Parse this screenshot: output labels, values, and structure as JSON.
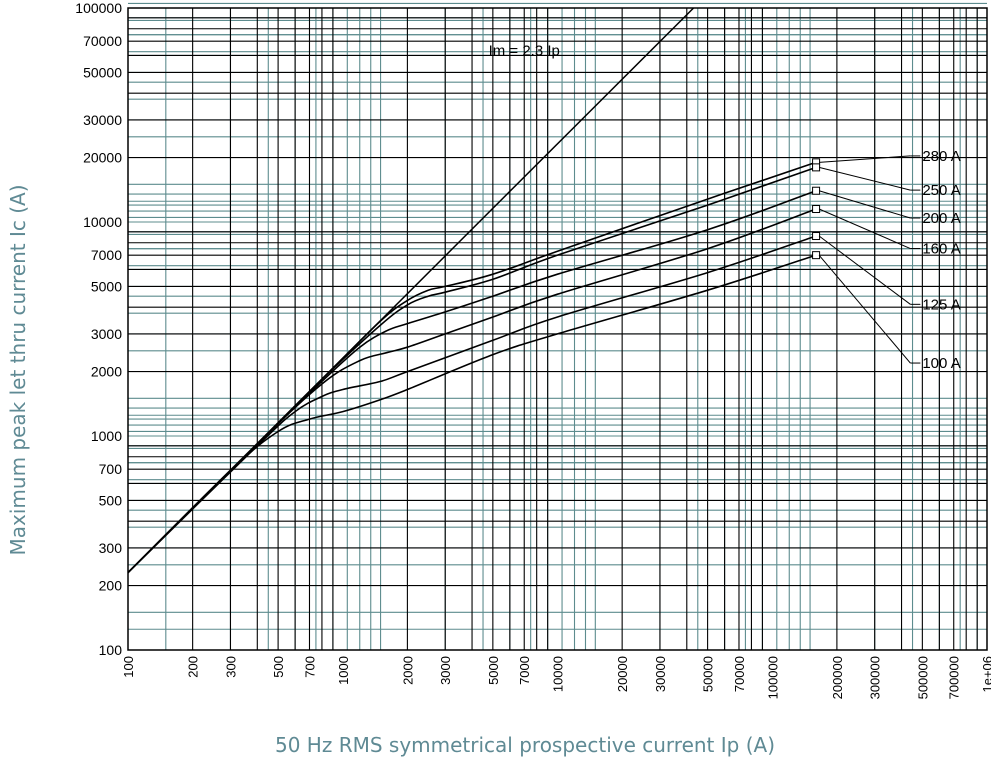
{
  "chart_data": {
    "type": "line",
    "title": "",
    "xlabel": "50 Hz RMS symmetrical prospective current Ip (A)",
    "ylabel": "Maximum peak let thru current Ic (A)",
    "xscale": "log",
    "yscale": "log",
    "xlim": [
      100,
      1000000
    ],
    "ylim": [
      100,
      100000
    ],
    "grid": true,
    "x_ticks": [
      {
        "value": 100,
        "label": "100"
      },
      {
        "value": 200,
        "label": "200"
      },
      {
        "value": 300,
        "label": "300"
      },
      {
        "value": 500,
        "label": "500"
      },
      {
        "value": 700,
        "label": "700"
      },
      {
        "value": 1000,
        "label": "1000"
      },
      {
        "value": 2000,
        "label": "2000"
      },
      {
        "value": 3000,
        "label": "3000"
      },
      {
        "value": 5000,
        "label": "5000"
      },
      {
        "value": 7000,
        "label": "7000"
      },
      {
        "value": 10000,
        "label": "10000"
      },
      {
        "value": 20000,
        "label": "20000"
      },
      {
        "value": 30000,
        "label": "30000"
      },
      {
        "value": 50000,
        "label": "50000"
      },
      {
        "value": 70000,
        "label": "70000"
      },
      {
        "value": 100000,
        "label": "100000"
      },
      {
        "value": 200000,
        "label": "200000"
      },
      {
        "value": 300000,
        "label": "300000"
      },
      {
        "value": 500000,
        "label": "500000"
      },
      {
        "value": 700000,
        "label": "700000"
      },
      {
        "value": 1000000,
        "label": "1e+06"
      }
    ],
    "y_ticks": [
      {
        "value": 100,
        "label": "100"
      },
      {
        "value": 200,
        "label": "200"
      },
      {
        "value": 300,
        "label": "300"
      },
      {
        "value": 500,
        "label": "500"
      },
      {
        "value": 700,
        "label": "700"
      },
      {
        "value": 1000,
        "label": "1000"
      },
      {
        "value": 2000,
        "label": "2000"
      },
      {
        "value": 3000,
        "label": "3000"
      },
      {
        "value": 5000,
        "label": "5000"
      },
      {
        "value": 7000,
        "label": "7000"
      },
      {
        "value": 10000,
        "label": "10000"
      },
      {
        "value": 20000,
        "label": "20000"
      },
      {
        "value": 30000,
        "label": "30000"
      },
      {
        "value": 50000,
        "label": "50000"
      },
      {
        "value": 70000,
        "label": "70000"
      },
      {
        "value": 100000,
        "label": "100000"
      }
    ],
    "reference_line": {
      "label": "Im = 2.3 Ip",
      "label_at": [
        7000,
        60000
      ],
      "x": [
        100,
        43000
      ],
      "y": [
        230,
        100000
      ]
    },
    "series": [
      {
        "name": "280 A",
        "leader_label_at": [
          500000,
          19500
        ],
        "marker_x": 160000,
        "x": [
          100,
          400,
          800,
          1500,
          2000,
          2500,
          3000,
          5000,
          10000,
          50000,
          160000
        ],
        "y": [
          230,
          920,
          1840,
          3450,
          4300,
          4800,
          5000,
          5700,
          7300,
          12800,
          19000
        ]
      },
      {
        "name": "250 A",
        "leader_label_at": [
          500000,
          13500
        ],
        "marker_x": 160000,
        "x": [
          100,
          400,
          800,
          1500,
          2000,
          2500,
          3000,
          5000,
          10000,
          50000,
          160000
        ],
        "y": [
          230,
          920,
          1840,
          3300,
          4100,
          4500,
          4700,
          5400,
          7000,
          12000,
          18000
        ]
      },
      {
        "name": "200 A",
        "leader_label_at": [
          500000,
          10000
        ],
        "marker_x": 160000,
        "x": [
          100,
          400,
          800,
          1200,
          1600,
          2000,
          3000,
          5000,
          10000,
          50000,
          160000
        ],
        "y": [
          230,
          920,
          1800,
          2600,
          3100,
          3350,
          3800,
          4500,
          5700,
          9200,
          14000
        ]
      },
      {
        "name": "160 A",
        "leader_label_at": [
          500000,
          7200
        ],
        "marker_x": 160000,
        "x": [
          100,
          400,
          800,
          1200,
          1600,
          2000,
          3000,
          5000,
          10000,
          50000,
          160000
        ],
        "y": [
          230,
          920,
          1750,
          2250,
          2450,
          2600,
          3000,
          3600,
          4600,
          7500,
          11500
        ]
      },
      {
        "name": "125 A",
        "leader_label_at": [
          500000,
          3950
        ],
        "marker_x": 160000,
        "x": [
          100,
          400,
          600,
          800,
          1000,
          1500,
          2000,
          5000,
          10000,
          50000,
          160000
        ],
        "y": [
          230,
          900,
          1300,
          1530,
          1650,
          1800,
          2000,
          2800,
          3600,
          5800,
          8600
        ]
      },
      {
        "name": "100 A",
        "leader_label_at": [
          500000,
          2100
        ],
        "marker_x": 160000,
        "x": [
          100,
          300,
          500,
          700,
          1000,
          1500,
          2000,
          5000,
          10000,
          50000,
          160000
        ],
        "y": [
          230,
          690,
          1050,
          1200,
          1300,
          1480,
          1650,
          2400,
          3000,
          4800,
          7000
        ]
      }
    ]
  }
}
